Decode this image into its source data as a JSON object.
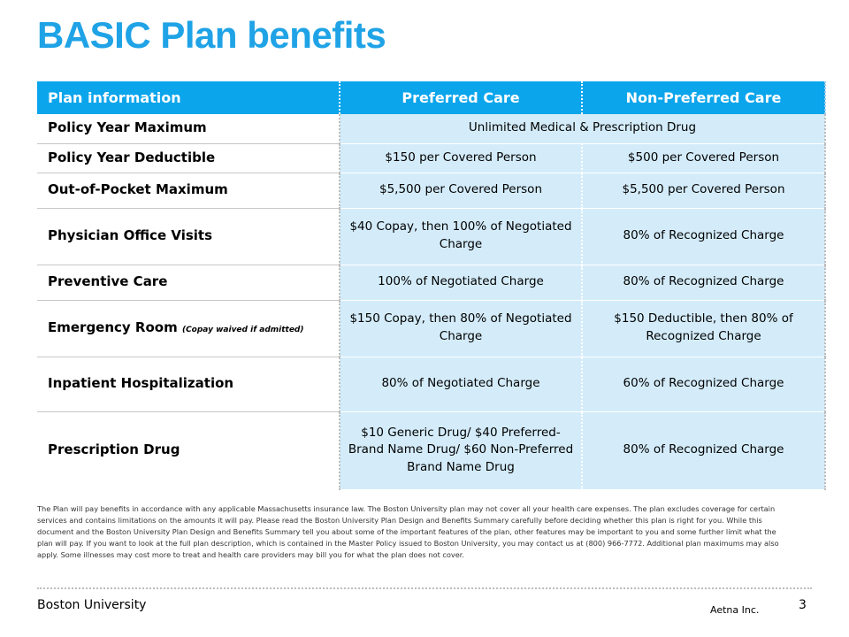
{
  "title": "BASIC Plan benefits",
  "table": {
    "headers": [
      "Plan information",
      "Preferred Care",
      "Non-Preferred Care"
    ],
    "rows": [
      {
        "label": "Policy Year Maximum",
        "note": "",
        "merged": "Unlimited Medical & Prescription Drug",
        "preferred": "",
        "non_preferred": ""
      },
      {
        "label": "Policy Year Deductible",
        "note": "",
        "merged": "",
        "preferred": "$150 per Covered Person",
        "non_preferred": "$500 per Covered Person"
      },
      {
        "label": "Out-of-Pocket  Maximum",
        "note": "",
        "merged": "",
        "preferred": "$5,500 per Covered Person",
        "non_preferred": "$5,500 per Covered Person"
      },
      {
        "label": "Physician Office Visits",
        "note": "",
        "merged": "",
        "preferred": "$40 Copay, then 100% of Negotiated Charge",
        "non_preferred": "80% of Recognized Charge"
      },
      {
        "label": "Preventive Care",
        "note": "",
        "merged": "",
        "preferred": "100% of Negotiated Charge",
        "non_preferred": "80% of Recognized Charge"
      },
      {
        "label": "Emergency Room",
        "note": "(Copay waived if admitted)",
        "merged": "",
        "preferred": "$150 Copay, then 80% of Negotiated Charge",
        "non_preferred": "$150 Deductible, then 80% of Recognized Charge"
      },
      {
        "label": "Inpatient  Hospitalization",
        "note": "",
        "merged": "",
        "preferred": "80% of Negotiated Charge",
        "non_preferred": "60% of Recognized Charge"
      },
      {
        "label": "Prescription Drug",
        "note": "",
        "merged": "",
        "preferred": "$10 Generic Drug/ $40 Preferred-Brand Name Drug/ $60 Non-Preferred Brand Name Drug",
        "non_preferred": "80% of Recognized Charge"
      }
    ]
  },
  "disclaimer": "The Plan will pay benefits in accordance with any applicable Massachusetts insurance law. The  Boston University plan may not cover all your health care expenses. The plan excludes coverage for certain services and contains limitations on the amounts it will pay. Please read the Boston University Plan Design and Benefits Summary carefully before deciding whether this plan is right for you.  While this document  and the Boston University Plan Design and Benefits Summary tell you about some of the important features of the plan, other features may be important to you and some further limit what the plan will pay. If you want to look at the full plan description, which is contained in the Master Policy issued to Boston University, you may contact us at (800) 966-7772.  Additional  plan maximums may also apply. Some illnesses may cost more to treat and health care providers  may bill you for what the plan does not cover.",
  "footer": {
    "left": "Boston University",
    "middle": "Aetna Inc.",
    "page_number": "3"
  },
  "colors": {
    "title": "#1fa3e6",
    "header_bg": "#0ba5ec",
    "cell_bg": "#d4ecfa"
  }
}
